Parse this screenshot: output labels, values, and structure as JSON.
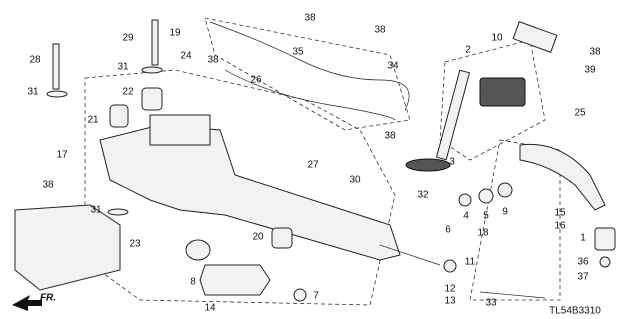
{
  "callouts": [
    "38",
    "19",
    "38",
    "29",
    "28",
    "35",
    "24",
    "38",
    "31",
    "34",
    "26",
    "10",
    "2",
    "38",
    "39",
    "31",
    "22",
    "21",
    "38",
    "25",
    "17",
    "27",
    "30",
    "3",
    "38",
    "31",
    "32",
    "6",
    "4",
    "5",
    "9",
    "15",
    "16",
    "20",
    "18",
    "1",
    "23",
    "11",
    "8",
    "36",
    "37",
    "12",
    "13",
    "7",
    "14",
    "33"
  ],
  "diagram_code": "TL54B3310",
  "front_label": "FR."
}
